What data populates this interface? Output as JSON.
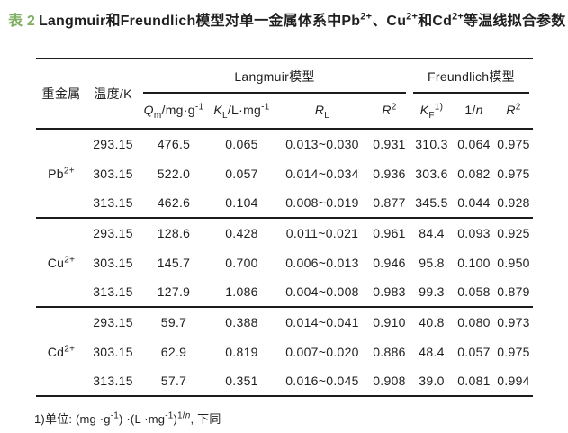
{
  "colors": {
    "accent_green": "#7fae60",
    "text": "#1f1f1f",
    "rule": "#1c1c1c",
    "background": "#ffffff"
  },
  "title": {
    "label": "表 2",
    "text_html": "Langmuir和Freundlich模型对单一金属体系中Pb<sup>2+</sup>、Cu<sup>2+</sup>和Cd<sup>2+</sup>等温线拟合参数"
  },
  "table": {
    "col_headers": {
      "metal": "重金属",
      "temp": "温度/K",
      "langmuir_model": "Langmuir模型",
      "freundlich_model": "Freundlich模型",
      "qm_html": "<i>Q</i><sub>m</sub>/mg·g<sup>-1</sup>",
      "kl_html": "<i>K</i><sub>L</sub>/L·mg<sup>-1</sup>",
      "rl_html": "<i>R</i><sub>L</sub>",
      "r2_langmuir_html": "<i>R</i><sup>2</sup>",
      "kf_html": "<i>K</i><sub>F</sub><sup>1)</sup>",
      "n_html": "1/<i>n</i>",
      "r2_freundlich_html": "<i>R</i><sup>2</sup>"
    },
    "groups": [
      {
        "metal_html": "Pb<sup>2+</sup>",
        "rows": [
          {
            "temp": "293.15",
            "qm": "476.5",
            "kl": "0.065",
            "rl": "0.013~0.030",
            "r2l": "0.931",
            "kf": "310.3",
            "n": "0.064",
            "r2f": "0.975"
          },
          {
            "temp": "303.15",
            "qm": "522.0",
            "kl": "0.057",
            "rl": "0.014~0.034",
            "r2l": "0.936",
            "kf": "303.6",
            "n": "0.082",
            "r2f": "0.975"
          },
          {
            "temp": "313.15",
            "qm": "462.6",
            "kl": "0.104",
            "rl": "0.008~0.019",
            "r2l": "0.877",
            "kf": "345.5",
            "n": "0.044",
            "r2f": "0.928"
          }
        ]
      },
      {
        "metal_html": "Cu<sup>2+</sup>",
        "rows": [
          {
            "temp": "293.15",
            "qm": "128.6",
            "kl": "0.428",
            "rl": "0.011~0.021",
            "r2l": "0.961",
            "kf": "84.4",
            "n": "0.093",
            "r2f": "0.925"
          },
          {
            "temp": "303.15",
            "qm": "145.7",
            "kl": "0.700",
            "rl": "0.006~0.013",
            "r2l": "0.946",
            "kf": "95.8",
            "n": "0.100",
            "r2f": "0.950"
          },
          {
            "temp": "313.15",
            "qm": "127.9",
            "kl": "1.086",
            "rl": "0.004~0.008",
            "r2l": "0.983",
            "kf": "99.3",
            "n": "0.058",
            "r2f": "0.879"
          }
        ]
      },
      {
        "metal_html": "Cd<sup>2+</sup>",
        "rows": [
          {
            "temp": "293.15",
            "qm": "59.7",
            "kl": "0.388",
            "rl": "0.014~0.041",
            "r2l": "0.910",
            "kf": "40.8",
            "n": "0.080",
            "r2f": "0.973"
          },
          {
            "temp": "303.15",
            "qm": "62.9",
            "kl": "0.819",
            "rl": "0.007~0.020",
            "r2l": "0.886",
            "kf": "48.4",
            "n": "0.057",
            "r2f": "0.975"
          },
          {
            "temp": "313.15",
            "qm": "57.7",
            "kl": "0.351",
            "rl": "0.016~0.045",
            "r2l": "0.908",
            "kf": "39.0",
            "n": "0.081",
            "r2f": "0.994"
          }
        ]
      }
    ]
  },
  "footnote_html": "1)单位: (mg ·g<sup>-1</sup>) ·(L ·mg<sup>-1</sup>)<sup>1/<i>n</i></sup>, 下同"
}
